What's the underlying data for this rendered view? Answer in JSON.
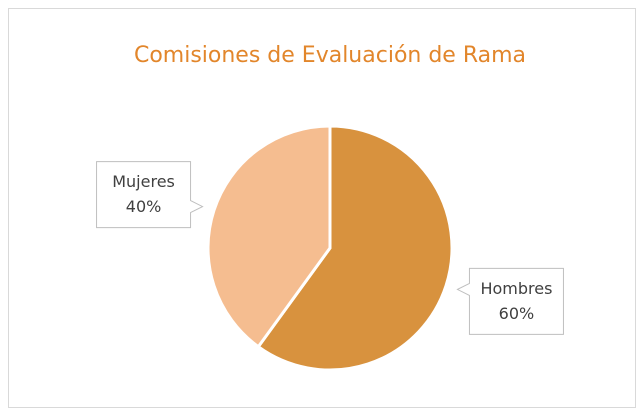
{
  "chart_data": {
    "type": "pie",
    "title": "Comisiones de Evaluación de Rama",
    "categories": [
      "Hombres",
      "Mujeres"
    ],
    "values": [
      60,
      40
    ],
    "value_labels": [
      "60%",
      "40%"
    ],
    "colors": [
      "#d8923e",
      "#f5bd90"
    ]
  }
}
